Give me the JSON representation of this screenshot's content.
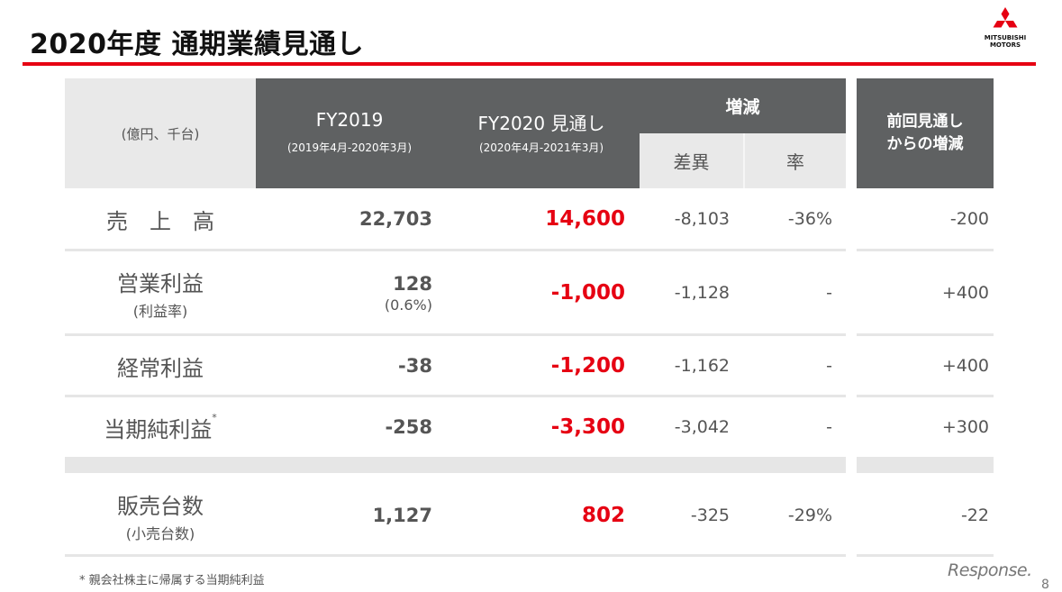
{
  "title": "2020年度 通期業績見通し",
  "logo": {
    "brand_line1": "MITSUBISHI",
    "brand_line2": "MOTORS"
  },
  "header": {
    "unit": "(億円、千台)",
    "fy2019": "FY2019",
    "fy2019_sub": "(2019年4月-2020年3月)",
    "fy2020": "FY2020 見通し",
    "fy2020_sub": "(2020年4月-2021年3月)",
    "change": "増減",
    "diff": "差異",
    "rate": "率",
    "prev_line1": "前回見通し",
    "prev_line2": "からの増減"
  },
  "rows": [
    {
      "label": "売　上　高",
      "label_sub": "",
      "fy2019": "22,703",
      "fy2019_sub": "",
      "fy2020": "14,600",
      "diff": "-8,103",
      "rate": "-36%",
      "prev": "-200"
    },
    {
      "label": "営業利益",
      "label_sub": "(利益率)",
      "fy2019": "128",
      "fy2019_sub": "(0.6%)",
      "fy2020": "-1,000",
      "diff": "-1,128",
      "rate": "-",
      "prev": "+400"
    },
    {
      "label": "経常利益",
      "label_sub": "",
      "fy2019": "-38",
      "fy2019_sub": "",
      "fy2020": "-1,200",
      "diff": "-1,162",
      "rate": "-",
      "prev": "+400"
    },
    {
      "label": "当期純利益",
      "label_mark": "*",
      "label_sub": "",
      "fy2019": "-258",
      "fy2019_sub": "",
      "fy2020": "-3,300",
      "diff": "-3,042",
      "rate": "-",
      "prev": "+300"
    },
    {
      "label": "販売台数",
      "label_sub": "(小売台数)",
      "fy2019": "1,127",
      "fy2019_sub": "",
      "fy2020": "802",
      "diff": "-325",
      "rate": "-29%",
      "prev": "-22"
    }
  ],
  "footnote": "* 親会社株主に帰属する当期純利益",
  "watermark": "Response.",
  "page_number": "8",
  "colors": {
    "accent_red": "#e60012",
    "header_dark": "#5f6162",
    "header_light": "#e9e9e9"
  }
}
